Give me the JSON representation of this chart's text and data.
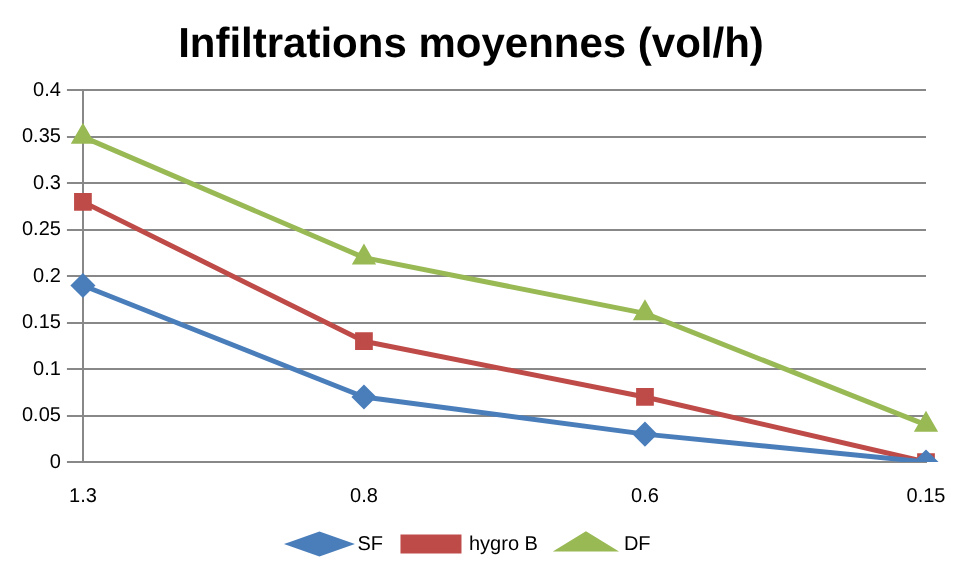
{
  "chart_data": {
    "type": "line",
    "title": "Infiltrations moyennes (vol/h)",
    "categories": [
      "1.3",
      "0.8",
      "0.6",
      "0.15"
    ],
    "series": [
      {
        "name": "SF",
        "color": "#4a7ebb",
        "marker": "diamond",
        "values": [
          0.19,
          0.07,
          0.03,
          0
        ]
      },
      {
        "name": "hygro B",
        "color": "#be4b48",
        "marker": "square",
        "values": [
          0.28,
          0.13,
          0.07,
          0
        ]
      },
      {
        "name": "DF",
        "color": "#98b954",
        "marker": "triangle",
        "values": [
          0.35,
          0.22,
          0.16,
          0.04
        ]
      }
    ],
    "ylim": [
      0,
      0.4
    ],
    "yticks": [
      0,
      0.05,
      0.1,
      0.15,
      0.2,
      0.25,
      0.3,
      0.35,
      0.4
    ],
    "grid": "y",
    "legend": "bottom",
    "line_style": "solid"
  }
}
